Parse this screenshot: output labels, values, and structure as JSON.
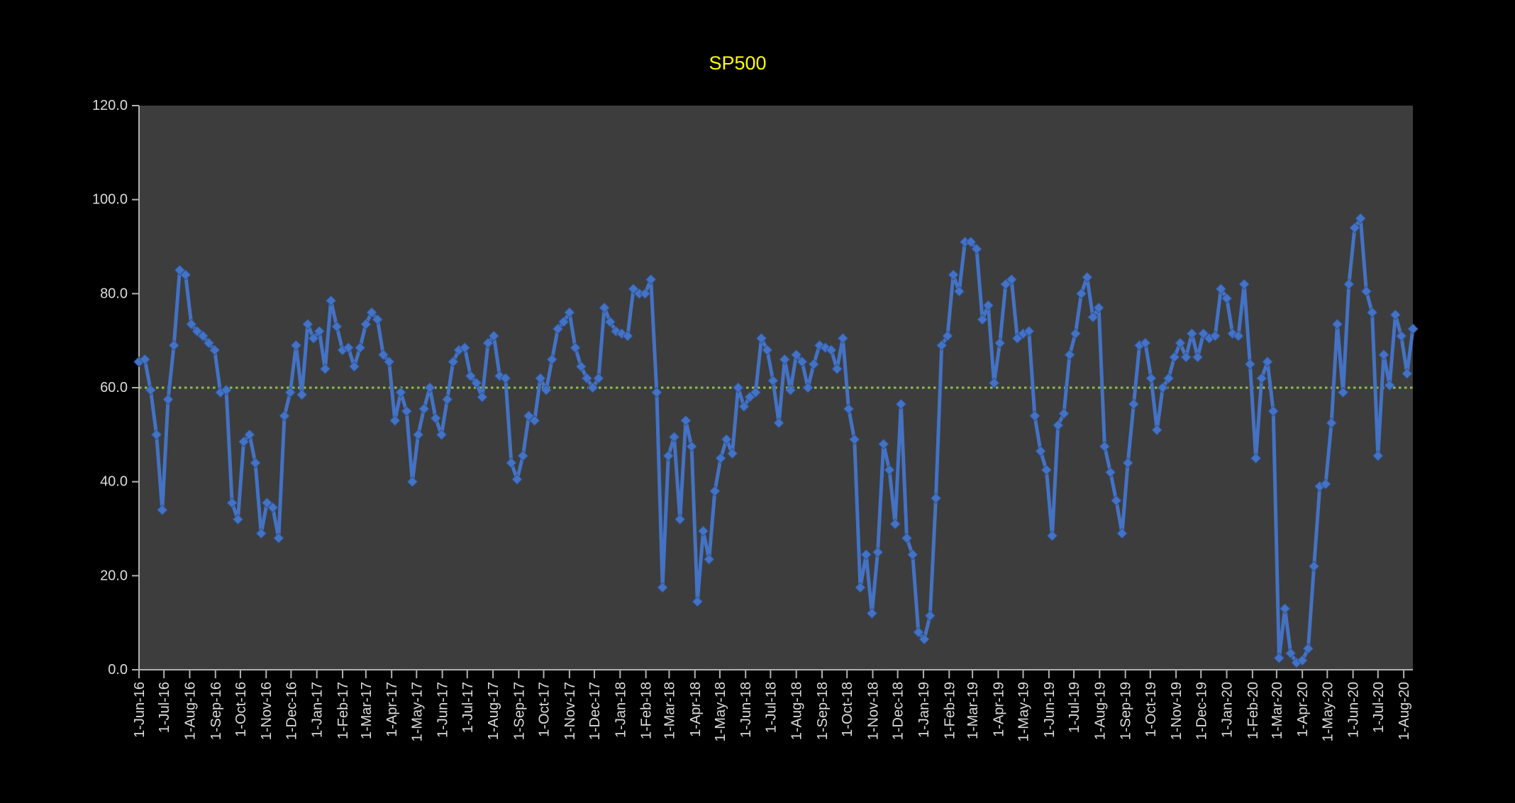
{
  "title": "SP500",
  "colors": {
    "background": "#000000",
    "plot_bg": "#3D3D3D",
    "line": "#4472C4",
    "marker_fill": "#4472C4",
    "marker_border": "#2E5395",
    "reference_line": "#8CBE46",
    "axis_line": "#B0B0B0",
    "tick_label": "#DCDCDC",
    "title_color": "#FFFF00"
  },
  "chart_data": {
    "type": "line",
    "title": "SP500",
    "xlabel": "",
    "ylabel": "",
    "ylim": [
      0,
      120
    ],
    "y_tick_labels": [
      "120.0",
      "100.0",
      "80.0",
      "60.0",
      "40.0",
      "20.0",
      "0.0"
    ],
    "x_tick_labels": [
      "1-Jun-16",
      "1-Jul-16",
      "1-Aug-16",
      "1-Sep-16",
      "1-Oct-16",
      "1-Nov-16",
      "1-Dec-16",
      "1-Jan-17",
      "1-Feb-17",
      "1-Mar-17",
      "1-Apr-17",
      "1-May-17",
      "1-Jun-17",
      "1-Jul-17",
      "1-Aug-17",
      "1-Sep-17",
      "1-Oct-17",
      "1-Nov-17",
      "1-Dec-17",
      "1-Jan-18",
      "1-Feb-18",
      "1-Mar-18",
      "1-Apr-18",
      "1-May-18",
      "1-Jun-18",
      "1-Jul-18",
      "1-Aug-18",
      "1-Sep-18",
      "1-Oct-18",
      "1-Nov-18",
      "1-Dec-18",
      "1-Jan-19",
      "1-Feb-19",
      "1-Mar-19",
      "1-Apr-19",
      "1-May-19",
      "1-Jun-19",
      "1-Jul-19",
      "1-Aug-19",
      "1-Sep-19",
      "1-Oct-19",
      "1-Nov-19",
      "1-Dec-19",
      "1-Jan-20",
      "1-Feb-20",
      "1-Mar-20",
      "1-Apr-20",
      "1-May-20",
      "1-Jun-20",
      "1-Jul-20",
      "1-Aug-20"
    ],
    "x_interval": "weekly",
    "reference_line_y": 60,
    "grid": "off",
    "legend": "none",
    "marker": "diamond",
    "values": [
      65.5,
      66,
      59.5,
      50,
      34,
      57.5,
      69,
      85,
      84,
      73.5,
      72,
      71,
      69.5,
      68,
      59,
      59.5,
      35.5,
      32,
      48.5,
      50,
      44,
      29,
      35.5,
      34.5,
      28,
      54,
      59,
      69,
      58.5,
      73.5,
      70.5,
      72,
      64,
      78.5,
      73,
      68,
      68.5,
      64.5,
      68.5,
      73.5,
      76,
      74.5,
      67,
      65.5,
      53,
      59,
      55,
      40,
      50,
      55.5,
      60,
      53.5,
      50,
      57.5,
      65.5,
      68,
      68.5,
      62.5,
      61,
      58,
      69.5,
      71,
      62.5,
      62,
      44,
      40.5,
      45.5,
      54,
      53,
      62,
      59.5,
      66,
      72.5,
      74,
      76,
      68.5,
      64.5,
      62,
      60,
      62,
      77,
      74,
      72,
      71.5,
      71,
      81,
      80,
      80,
      83,
      59,
      17.5,
      45.5,
      49.5,
      32,
      53,
      47.5,
      14.5,
      29.5,
      23.5,
      38,
      45,
      49,
      46,
      60,
      56,
      58,
      59,
      70.5,
      68,
      61.5,
      52.5,
      66,
      59.5,
      67,
      65.5,
      60,
      65,
      69,
      68.5,
      68,
      64,
      70.5,
      55.5,
      49,
      17.5,
      24.5,
      12,
      25,
      48,
      42.5,
      31,
      56.5,
      28,
      24.5,
      8,
      6.5,
      11.5,
      36.5,
      69,
      71,
      84,
      80.5,
      91,
      91,
      89.5,
      74.5,
      77.5,
      61,
      69.5,
      82,
      83,
      70.5,
      71.5,
      72,
      54,
      46.5,
      42.5,
      28.5,
      52,
      54.5,
      67,
      71.5,
      80,
      83.5,
      75,
      77,
      47.5,
      42,
      36,
      29,
      44,
      56.5,
      69,
      69.5,
      62,
      51,
      60,
      62,
      66.5,
      69.5,
      66.5,
      71.5,
      66.5,
      71.5,
      70.5,
      71,
      81,
      79,
      71.5,
      71,
      82,
      65,
      45,
      62,
      65.5,
      55,
      2.5,
      13,
      3.5,
      1.5,
      2,
      4.5,
      22,
      39,
      39.5,
      52.5,
      73.5,
      59,
      82,
      94,
      96,
      80.5,
      76,
      45.5,
      67,
      60.5,
      75.5,
      71,
      63,
      72.5
    ]
  }
}
